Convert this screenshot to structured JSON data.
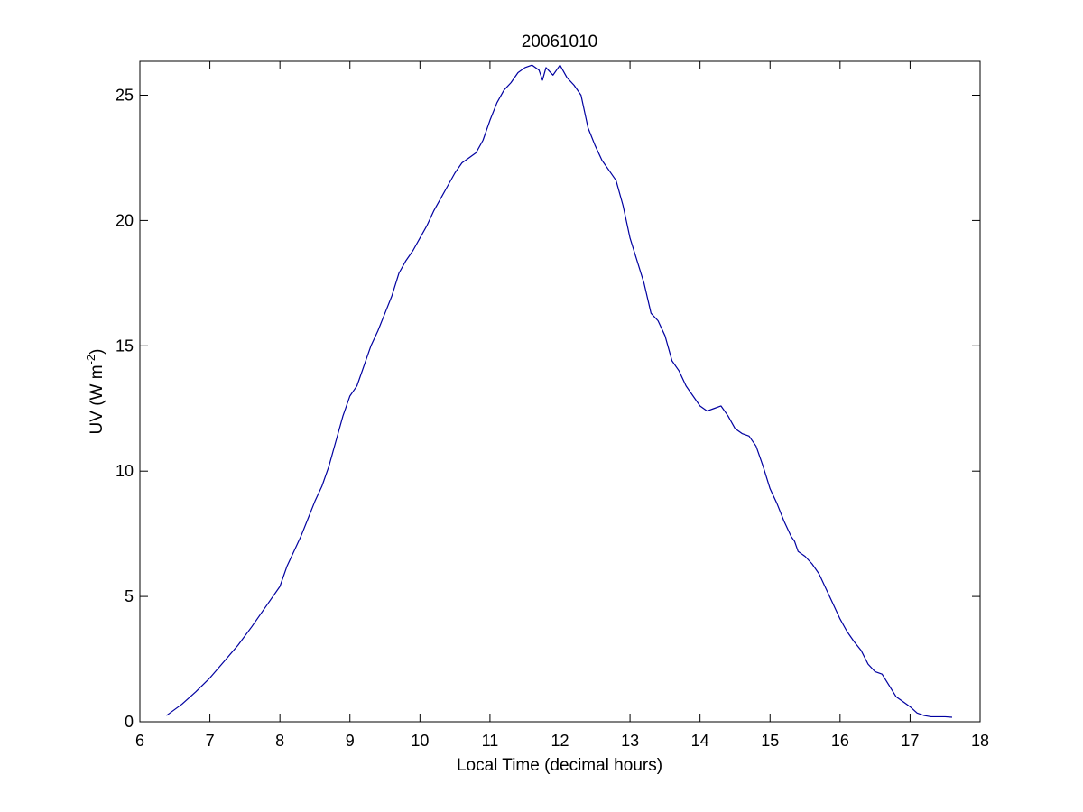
{
  "chart_data": {
    "type": "line",
    "title": "20061010",
    "xlabel": "Local Time (decimal hours)",
    "ylabel_main": "UV (W m",
    "ylabel_sup": "-2",
    "ylabel_end": ")",
    "xlim": [
      6,
      18
    ],
    "ylim": [
      0,
      26.35
    ],
    "xticks": [
      6,
      7,
      8,
      9,
      10,
      11,
      12,
      13,
      14,
      15,
      16,
      17,
      18
    ],
    "yticks": [
      0,
      5,
      10,
      15,
      20,
      25
    ],
    "grid": false,
    "line_color": "#0000a0",
    "series": [
      {
        "x": [
          6.38,
          6.6,
          6.8,
          7.0,
          7.2,
          7.4,
          7.6,
          7.8,
          8.0,
          8.05,
          8.1,
          8.2,
          8.3,
          8.4,
          8.5,
          8.6,
          8.7,
          8.8,
          8.9,
          9.0,
          9.05,
          9.1,
          9.2,
          9.3,
          9.4,
          9.5,
          9.6,
          9.7,
          9.8,
          9.9,
          10.0,
          10.1,
          10.2,
          10.3,
          10.4,
          10.5,
          10.6,
          10.7,
          10.8,
          10.9,
          11.0,
          11.1,
          11.2,
          11.3,
          11.4,
          11.5,
          11.6,
          11.7,
          11.75,
          11.8,
          11.9,
          12.0,
          12.1,
          12.2,
          12.3,
          12.4,
          12.5,
          12.6,
          12.7,
          12.8,
          12.9,
          13.0,
          13.1,
          13.2,
          13.3,
          13.4,
          13.5,
          13.55,
          13.6,
          13.7,
          13.8,
          13.9,
          14.0,
          14.1,
          14.2,
          14.3,
          14.4,
          14.5,
          14.6,
          14.7,
          14.8,
          14.9,
          15.0,
          15.1,
          15.2,
          15.3,
          15.35,
          15.4,
          15.5,
          15.6,
          15.7,
          15.8,
          15.9,
          16.0,
          16.1,
          16.2,
          16.3,
          16.4,
          16.5,
          16.6,
          16.7,
          16.8,
          16.9,
          17.0,
          17.1,
          17.2,
          17.3,
          17.4,
          17.5,
          17.6
        ],
        "y": [
          0.25,
          0.7,
          1.2,
          1.75,
          2.4,
          3.05,
          3.8,
          4.6,
          5.4,
          5.8,
          6.2,
          6.8,
          7.4,
          8.1,
          8.8,
          9.4,
          10.2,
          11.2,
          12.2,
          13.0,
          13.2,
          13.4,
          14.2,
          15.0,
          15.6,
          16.3,
          17.0,
          17.9,
          18.4,
          18.8,
          19.3,
          19.8,
          20.4,
          20.9,
          21.4,
          21.9,
          22.3,
          22.5,
          22.7,
          23.2,
          24.0,
          24.7,
          25.2,
          25.5,
          25.9,
          26.1,
          26.2,
          26.0,
          25.6,
          26.1,
          25.8,
          26.2,
          25.7,
          25.4,
          25.0,
          23.7,
          23.0,
          22.4,
          22.0,
          21.6,
          20.6,
          19.3,
          18.4,
          17.5,
          16.3,
          16.0,
          15.4,
          14.9,
          14.4,
          14.0,
          13.4,
          13.0,
          12.6,
          12.4,
          12.5,
          12.6,
          12.2,
          11.7,
          11.5,
          11.4,
          11.0,
          10.2,
          9.3,
          8.7,
          8.0,
          7.4,
          7.2,
          6.8,
          6.6,
          6.3,
          5.9,
          5.3,
          4.7,
          4.1,
          3.6,
          3.2,
          2.85,
          2.3,
          2.0,
          1.9,
          1.45,
          1.0,
          0.8,
          0.6,
          0.35,
          0.25,
          0.2,
          0.2,
          0.2,
          0.18
        ]
      }
    ]
  }
}
